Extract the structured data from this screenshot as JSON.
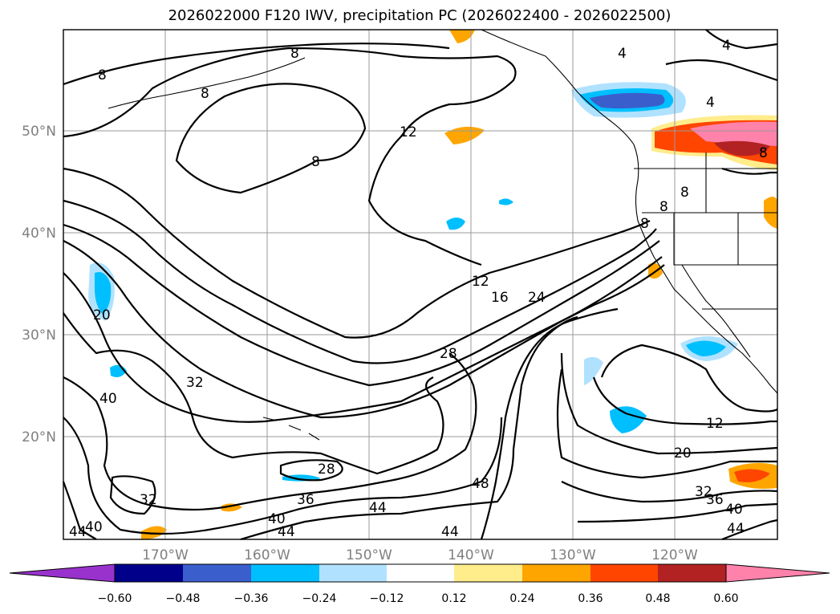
{
  "title": "2026022000 F120 IWV, precipitation PC (2026022400 - 2026022500)",
  "lat_labels": [
    "50°N",
    "40°N",
    "30°N",
    "20°N"
  ],
  "lon_labels": [
    "170°W",
    "160°W",
    "150°W",
    "140°W",
    "130°W",
    "120°W"
  ],
  "colorbar": {
    "ticks": [
      "−0.60",
      "−0.48",
      "−0.36",
      "−0.24",
      "−0.12",
      "0.12",
      "0.24",
      "0.36",
      "0.48",
      "0.60"
    ],
    "colors": [
      "#9932cc",
      "#00008b",
      "#3a5fcd",
      "#00bfff",
      "#b0e2ff",
      "#ffffff",
      "#ffec8b",
      "#ffa500",
      "#ff4500",
      "#b22222",
      "#ff82ab"
    ]
  },
  "contour_labels": [
    "8",
    "8",
    "8",
    "12",
    "8",
    "4",
    "4",
    "4",
    "8",
    "8",
    "8",
    "12",
    "16",
    "24",
    "28",
    "20",
    "40",
    "32",
    "28",
    "36",
    "40",
    "44",
    "44",
    "48",
    "44",
    "32",
    "12",
    "20",
    "32",
    "36",
    "40",
    "44",
    "44",
    "40",
    "8"
  ]
}
